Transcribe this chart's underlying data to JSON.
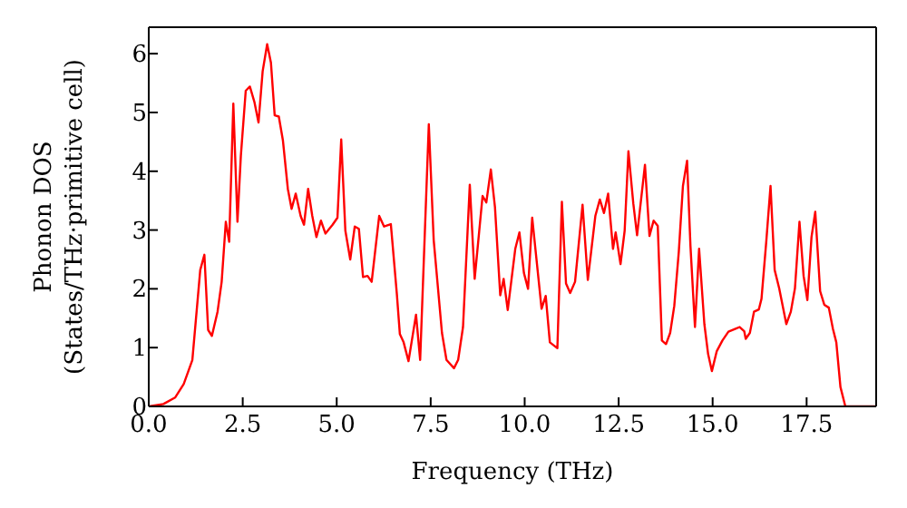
{
  "chart_data": {
    "type": "line",
    "xlabel": "Frequency (THz)",
    "ylabel": "Phonon DOS\n(States/THz·primitive cell)",
    "x": [
      0,
      0.39,
      0.7,
      0.93,
      1.16,
      1.37,
      1.48,
      1.58,
      1.68,
      1.83,
      1.94,
      2.05,
      2.14,
      2.25,
      2.36,
      2.45,
      2.58,
      2.69,
      2.81,
      2.92,
      3.03,
      3.15,
      3.25,
      3.35,
      3.46,
      3.57,
      3.7,
      3.8,
      3.91,
      4.04,
      4.13,
      4.24,
      4.35,
      4.46,
      4.58,
      4.7,
      4.89,
      5.02,
      5.12,
      5.23,
      5.36,
      5.48,
      5.59,
      5.7,
      5.82,
      5.93,
      6.13,
      6.26,
      6.44,
      6.6,
      6.68,
      6.78,
      6.91,
      7.11,
      7.22,
      7.45,
      7.58,
      7.8,
      7.92,
      8.12,
      8.23,
      8.36,
      8.54,
      8.67,
      8.88,
      8.98,
      9.1,
      9.21,
      9.35,
      9.44,
      9.55,
      9.75,
      9.86,
      9.98,
      10.09,
      10.2,
      10.45,
      10.56,
      10.67,
      10.87,
      10.99,
      11.1,
      11.21,
      11.34,
      11.54,
      11.68,
      11.88,
      12,
      12.11,
      12.22,
      12.35,
      12.42,
      12.55,
      12.66,
      12.76,
      12.89,
      12.99,
      13.2,
      13.32,
      13.43,
      13.54,
      13.65,
      13.76,
      13.87,
      13.98,
      14.1,
      14.21,
      14.32,
      14.41,
      14.53,
      14.64,
      14.78,
      14.88,
      14.98,
      15.11,
      15.26,
      15.42,
      15.61,
      15.72,
      15.84,
      15.88,
      15.99,
      16.1,
      16.23,
      16.3,
      16.43,
      16.54,
      16.65,
      16.77,
      16.96,
      17.08,
      17.19,
      17.31,
      17.42,
      17.52,
      17.63,
      17.73,
      17.86,
      17.97,
      18.09,
      18.2,
      18.29,
      18.4,
      18.53,
      19.35
    ],
    "series": [
      {
        "color": "#ff0000",
        "values": [
          0,
          0.04,
          0.15,
          0.38,
          0.79,
          2.32,
          2.58,
          1.3,
          1.2,
          1.61,
          2.12,
          3.14,
          2.8,
          5.15,
          3.14,
          4.26,
          5.37,
          5.44,
          5.18,
          4.83,
          5.7,
          6.16,
          5.85,
          4.95,
          4.93,
          4.52,
          3.7,
          3.36,
          3.62,
          3.24,
          3.09,
          3.7,
          3.24,
          2.88,
          3.16,
          2.94,
          3.09,
          3.21,
          4.54,
          2.99,
          2.5,
          3.06,
          3.02,
          2.2,
          2.22,
          2.12,
          3.24,
          3.06,
          3.1,
          1.91,
          1.23,
          1.09,
          0.77,
          1.56,
          0.79,
          4.8,
          2.83,
          1.25,
          0.79,
          0.65,
          0.79,
          1.35,
          3.77,
          2.17,
          3.58,
          3.47,
          4.03,
          3.39,
          1.89,
          2.17,
          1.64,
          2.68,
          2.96,
          2.27,
          2,
          3.21,
          1.66,
          1.88,
          1.09,
          0.99,
          3.48,
          2.09,
          1.93,
          2.12,
          3.43,
          2.15,
          3.24,
          3.52,
          3.29,
          3.62,
          2.68,
          2.96,
          2.42,
          2.99,
          4.34,
          3.45,
          2.91,
          4.11,
          2.9,
          3.16,
          3.07,
          1.12,
          1.06,
          1.25,
          1.71,
          2.63,
          3.75,
          4.18,
          2.73,
          1.35,
          2.68,
          1.4,
          0.89,
          0.6,
          0.94,
          1.12,
          1.27,
          1.32,
          1.35,
          1.28,
          1.15,
          1.25,
          1.61,
          1.65,
          1.83,
          2.83,
          3.75,
          2.32,
          2.01,
          1.4,
          1.61,
          2.01,
          3.14,
          2.22,
          1.81,
          2.88,
          3.31,
          1.96,
          1.73,
          1.68,
          1.32,
          1.09,
          0.33,
          0,
          0
        ]
      }
    ],
    "xlim": [
      0,
      19.35
    ],
    "ylim": [
      0,
      6.45
    ],
    "xticks": [
      {
        "value": 0,
        "label": "0.0"
      },
      {
        "value": 2.5,
        "label": "2.5"
      },
      {
        "value": 5,
        "label": "5.0"
      },
      {
        "value": 7.5,
        "label": "7.5"
      },
      {
        "value": 10,
        "label": "10.0"
      },
      {
        "value": 12.5,
        "label": "12.5"
      },
      {
        "value": 15,
        "label": "15.0"
      },
      {
        "value": 17.5,
        "label": "17.5"
      }
    ],
    "yticks": [
      0,
      1,
      2,
      3,
      4,
      5,
      6
    ],
    "grid": false,
    "legend": false,
    "marker": "none",
    "line_style": "solid"
  }
}
